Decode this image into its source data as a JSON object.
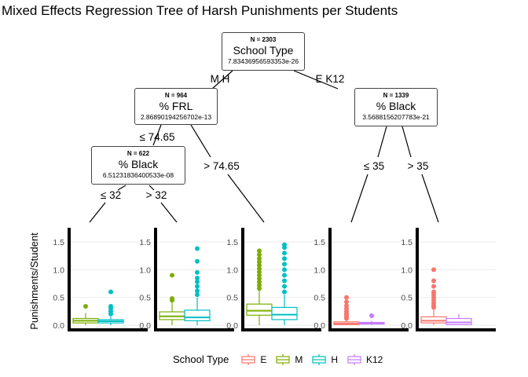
{
  "title": "Mixed Effects Regression Tree of Harsh Punishments per Students",
  "nodes": [
    {
      "id": "root",
      "n": "N =  2303",
      "var": "School Type",
      "p": "7.83436956593353e-26"
    },
    {
      "id": "frl",
      "n": "N =  964",
      "var": "% FRL",
      "p": "2.86890194256702e-13"
    },
    {
      "id": "blackright",
      "n": "N =  1339",
      "var": "% Black",
      "p": "3.5688156207783e-21"
    },
    {
      "id": "blackleft",
      "n": "N =  622",
      "var": "% Black",
      "p": "6.51231836400533e-08"
    }
  ],
  "edges": {
    "root_left": "M H",
    "root_right": "E K12",
    "frl_left": "≤  74.65",
    "frl_right": ">  74.65",
    "bl_left": "≤  32",
    "bl_right": ">  32",
    "br_left": "≤  35",
    "br_right": ">  35"
  },
  "y_label": "Punishments/Student",
  "y_ticks": [
    "0.0",
    "0.5",
    "1.0",
    "1.5"
  ],
  "legend": {
    "title": "School Type",
    "items": [
      {
        "label": "E",
        "color": "#F8766D"
      },
      {
        "label": "M",
        "color": "#7CAE00"
      },
      {
        "label": "H",
        "color": "#00BFC4"
      },
      {
        "label": "K12",
        "color": "#C77CFF"
      }
    ]
  },
  "chart_data": {
    "type": "box",
    "ylim": [
      0,
      1.6
    ],
    "panels": [
      {
        "boxes": [
          {
            "group": "M",
            "q1": 0.04,
            "median": 0.08,
            "q3": 0.12,
            "wmin": 0.0,
            "wmax": 0.22,
            "outliers": [
              0.34
            ]
          },
          {
            "group": "H",
            "q1": 0.04,
            "median": 0.07,
            "q3": 0.1,
            "wmin": 0.0,
            "wmax": 0.15,
            "outliers": [
              0.2,
              0.25,
              0.3,
              0.34,
              0.6
            ]
          }
        ]
      },
      {
        "boxes": [
          {
            "group": "M",
            "q1": 0.1,
            "median": 0.16,
            "q3": 0.24,
            "wmin": 0.0,
            "wmax": 0.42,
            "outliers": [
              0.45,
              0.48,
              0.9
            ]
          },
          {
            "group": "H",
            "q1": 0.08,
            "median": 0.14,
            "q3": 0.27,
            "wmin": 0.0,
            "wmax": 0.5,
            "outliers": [
              0.55,
              0.62,
              0.7,
              0.78,
              0.85,
              0.95,
              1.15,
              1.38
            ]
          }
        ]
      },
      {
        "boxes": [
          {
            "group": "M",
            "q1": 0.18,
            "median": 0.26,
            "q3": 0.38,
            "wmin": 0.0,
            "wmax": 0.62,
            "outliers": [
              0.66,
              0.72,
              0.78,
              0.84,
              0.9,
              0.96,
              1.02,
              1.08,
              1.14,
              1.2,
              1.27,
              1.34
            ]
          },
          {
            "group": "H",
            "q1": 0.1,
            "median": 0.19,
            "q3": 0.32,
            "wmin": 0.0,
            "wmax": 0.55,
            "outliers": [
              0.6,
              0.7,
              0.8,
              0.9,
              1.0,
              1.1,
              1.2,
              1.3,
              1.4,
              1.45
            ]
          }
        ]
      },
      {
        "boxes": [
          {
            "group": "E",
            "q1": 0.01,
            "median": 0.03,
            "q3": 0.06,
            "wmin": 0.0,
            "wmax": 0.1,
            "outliers": [
              0.12,
              0.15,
              0.18,
              0.21,
              0.25,
              0.3,
              0.35,
              0.42,
              0.5
            ]
          },
          {
            "group": "K12",
            "q1": 0.02,
            "median": 0.03,
            "q3": 0.05,
            "wmin": 0.0,
            "wmax": 0.08,
            "outliers": [
              0.17
            ]
          }
        ]
      },
      {
        "boxes": [
          {
            "group": "E",
            "q1": 0.04,
            "median": 0.08,
            "q3": 0.15,
            "wmin": 0.0,
            "wmax": 0.28,
            "outliers": [
              0.32,
              0.36,
              0.4,
              0.45,
              0.5,
              0.55,
              0.6,
              0.7,
              0.8,
              1.0
            ]
          },
          {
            "group": "K12",
            "q1": 0.01,
            "median": 0.05,
            "q3": 0.12,
            "wmin": 0.0,
            "wmax": 0.2,
            "outliers": []
          }
        ]
      }
    ]
  }
}
